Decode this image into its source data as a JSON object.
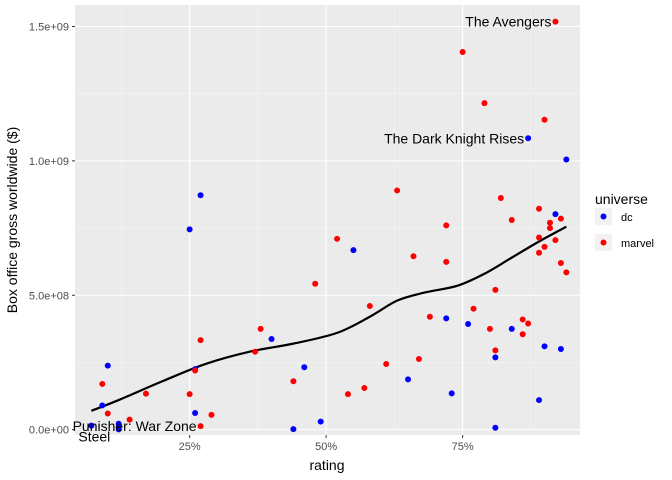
{
  "chart_data": {
    "type": "scatter",
    "title": "",
    "xlabel": "rating",
    "ylabel": "Box office gross worldwide ($)",
    "xlim": [
      0.04,
      0.965
    ],
    "ylim": [
      -20000000,
      1580000000
    ],
    "x_ticks": [
      0.25,
      0.5,
      0.75
    ],
    "x_tick_labels": [
      "25%",
      "50%",
      "75%"
    ],
    "y_ticks": [
      0,
      500000000,
      1000000000,
      1500000000
    ],
    "y_tick_labels": [
      "0.0e+00",
      "5.0e+08",
      "1.0e+09",
      "1.5e+09"
    ],
    "grid": true,
    "legend": {
      "title": "universe",
      "position": "right",
      "entries": [
        {
          "label": "dc",
          "color": "#0000ff"
        },
        {
          "label": "marvel",
          "color": "#ff0000"
        }
      ]
    },
    "series": [
      {
        "name": "dc",
        "color": "#0000ff",
        "points": [
          [
            0.07,
            15000000
          ],
          [
            0.09,
            90000000
          ],
          [
            0.1,
            238000000
          ],
          [
            0.12,
            22000000
          ],
          [
            0.12,
            9000000
          ],
          [
            0.12,
            1000000
          ],
          [
            0.25,
            745000000
          ],
          [
            0.26,
            225000000
          ],
          [
            0.26,
            62000000
          ],
          [
            0.27,
            872000000
          ],
          [
            0.4,
            337000000
          ],
          [
            0.44,
            2000000
          ],
          [
            0.46,
            232000000
          ],
          [
            0.49,
            30000000
          ],
          [
            0.55,
            668000000
          ],
          [
            0.65,
            187000000
          ],
          [
            0.72,
            414000000
          ],
          [
            0.73,
            135000000
          ],
          [
            0.76,
            393000000
          ],
          [
            0.81,
            269000000
          ],
          [
            0.81,
            7000000
          ],
          [
            0.84,
            375000000
          ],
          [
            0.87,
            1084000000
          ],
          [
            0.89,
            110000000
          ],
          [
            0.9,
            310000000
          ],
          [
            0.92,
            802000000
          ],
          [
            0.93,
            300000000
          ],
          [
            0.94,
            1005000000
          ]
        ]
      },
      {
        "name": "marvel",
        "color": "#ff0000",
        "points": [
          [
            0.09,
            170000000
          ],
          [
            0.1,
            60000000
          ],
          [
            0.14,
            37000000
          ],
          [
            0.17,
            134000000
          ],
          [
            0.25,
            132000000
          ],
          [
            0.26,
            220000000
          ],
          [
            0.27,
            333000000
          ],
          [
            0.27,
            13000000
          ],
          [
            0.29,
            55000000
          ],
          [
            0.37,
            290000000
          ],
          [
            0.38,
            375000000
          ],
          [
            0.44,
            180000000
          ],
          [
            0.48,
            543000000
          ],
          [
            0.52,
            710000000
          ],
          [
            0.54,
            132000000
          ],
          [
            0.57,
            155000000
          ],
          [
            0.58,
            460000000
          ],
          [
            0.61,
            244000000
          ],
          [
            0.63,
            890000000
          ],
          [
            0.66,
            645000000
          ],
          [
            0.67,
            263000000
          ],
          [
            0.69,
            420000000
          ],
          [
            0.72,
            760000000
          ],
          [
            0.72,
            624000000
          ],
          [
            0.75,
            1405000000
          ],
          [
            0.77,
            450000000
          ],
          [
            0.79,
            1215000000
          ],
          [
            0.8,
            375000000
          ],
          [
            0.81,
            520000000
          ],
          [
            0.81,
            295000000
          ],
          [
            0.82,
            862000000
          ],
          [
            0.84,
            780000000
          ],
          [
            0.86,
            410000000
          ],
          [
            0.86,
            355000000
          ],
          [
            0.87,
            395000000
          ],
          [
            0.89,
            822000000
          ],
          [
            0.89,
            715000000
          ],
          [
            0.89,
            658000000
          ],
          [
            0.9,
            1153000000
          ],
          [
            0.9,
            680000000
          ],
          [
            0.91,
            770000000
          ],
          [
            0.91,
            750000000
          ],
          [
            0.92,
            1518000000
          ],
          [
            0.92,
            705000000
          ],
          [
            0.93,
            785000000
          ],
          [
            0.93,
            620000000
          ],
          [
            0.94,
            585000000
          ]
        ]
      }
    ],
    "smooth_curve": {
      "color": "#000000",
      "points": [
        [
          0.07,
          70000000
        ],
        [
          0.12,
          110000000
        ],
        [
          0.2,
          180000000
        ],
        [
          0.28,
          245000000
        ],
        [
          0.36,
          290000000
        ],
        [
          0.44,
          320000000
        ],
        [
          0.52,
          360000000
        ],
        [
          0.58,
          420000000
        ],
        [
          0.63,
          480000000
        ],
        [
          0.68,
          510000000
        ],
        [
          0.74,
          535000000
        ],
        [
          0.79,
          580000000
        ],
        [
          0.84,
          640000000
        ],
        [
          0.89,
          700000000
        ],
        [
          0.94,
          755000000
        ]
      ]
    },
    "annotations": [
      {
        "text": "The Avengers",
        "x": 0.92,
        "y": 1518000000,
        "anchor": "end"
      },
      {
        "text": "The Dark Knight Rises",
        "x": 0.87,
        "y": 1084000000,
        "anchor": "end"
      },
      {
        "text": "Punisher: War Zone",
        "x": 0.27,
        "y": 13000000,
        "anchor": "end"
      },
      {
        "text": "Steel",
        "x": 0.07,
        "y": 15000000,
        "anchor": "start"
      }
    ]
  }
}
